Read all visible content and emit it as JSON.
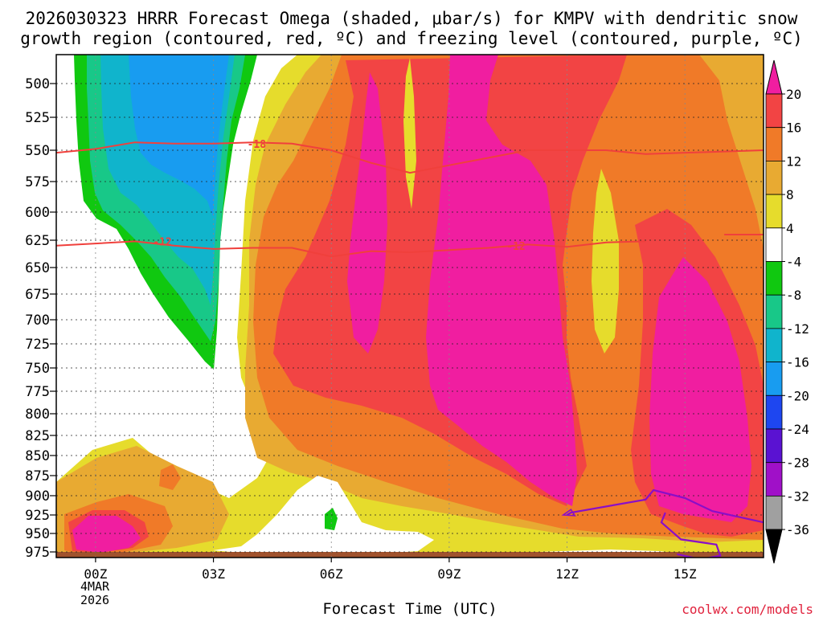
{
  "chart_data": {
    "type": "heatmap",
    "title_line1": "2026030323 HRRR Forecast Omega (shaded, μbar/s) for KMPV with dendritic snow",
    "title_line2": "growth region (contoured, red, ºC) and freezing level (contoured, purple, ºC)",
    "xlabel": "Forecast Time (UTC)",
    "watermark": "coolwx.com/models",
    "x_range_hours": [
      -1.0,
      17.0
    ],
    "x_ticks": [
      {
        "hour": 0,
        "label": "00Z"
      },
      {
        "hour": 3,
        "label": "03Z"
      },
      {
        "hour": 6,
        "label": "06Z"
      },
      {
        "hour": 9,
        "label": "09Z"
      },
      {
        "hour": 12,
        "label": "12Z"
      },
      {
        "hour": 15,
        "label": "15Z"
      }
    ],
    "date_label_1": "4MAR",
    "date_label_2": "2026",
    "y_range_mb": [
      985,
      475
    ],
    "y_ticks": [
      500,
      525,
      550,
      575,
      600,
      625,
      650,
      675,
      700,
      725,
      750,
      775,
      800,
      825,
      850,
      875,
      900,
      925,
      950,
      975
    ],
    "colorbar": {
      "labels": [
        "20",
        "16",
        "12",
        "8",
        "4",
        "-4",
        "-8",
        "-12",
        "-16",
        "-20",
        "-24",
        "-28",
        "-32",
        "-36"
      ],
      "colors": [
        "#f24444",
        "#f07a28",
        "#e8aa32",
        "#e6dc2c",
        "#ffffff",
        "#10c810",
        "#18c888",
        "#10b4cc",
        "#189cf0",
        "#1e46f0",
        "#5a12d2",
        "#a010c8",
        "#a0a0a0"
      ],
      "top_color": "#f01ea0",
      "bottom_color": "#000000"
    },
    "contours": {
      "dgz_minus18_label": "-18",
      "dgz_minus12_label_a": "-12",
      "dgz_minus12_label_b": "-12",
      "minus18_line": [
        [
          -1,
          552
        ],
        [
          0,
          549
        ],
        [
          1,
          544
        ],
        [
          2,
          545
        ],
        [
          3,
          545
        ],
        [
          4,
          544
        ],
        [
          5,
          545
        ],
        [
          6,
          550
        ],
        [
          7,
          560
        ],
        [
          8,
          568
        ],
        [
          9,
          562
        ],
        [
          10,
          556
        ],
        [
          11,
          550
        ],
        [
          12,
          550
        ],
        [
          13,
          550
        ],
        [
          14,
          553
        ],
        [
          15,
          552
        ],
        [
          16,
          551
        ],
        [
          17,
          550
        ]
      ],
      "minus12_line": [
        [
          -1,
          630
        ],
        [
          0,
          628
        ],
        [
          1,
          626
        ],
        [
          2,
          630
        ],
        [
          3,
          633
        ],
        [
          4,
          632
        ],
        [
          5,
          632
        ],
        [
          6,
          640
        ],
        [
          7,
          635
        ],
        [
          8,
          636
        ],
        [
          9,
          634
        ],
        [
          10,
          632
        ],
        [
          11,
          629
        ],
        [
          12,
          631
        ],
        [
          13,
          627
        ],
        [
          14,
          626
        ]
      ],
      "minus12_line_b": [
        [
          16,
          620
        ],
        [
          17,
          620
        ]
      ],
      "freezing_line": [
        [
          12,
          925
        ],
        [
          12.1,
          922
        ],
        [
          14,
          905
        ],
        [
          14.2,
          893
        ],
        [
          15,
          903
        ],
        [
          15.7,
          920
        ],
        [
          17,
          935
        ]
      ],
      "freezing_loop": [
        [
          14.5,
          922
        ],
        [
          14.4,
          935
        ],
        [
          14.9,
          958
        ],
        [
          15.8,
          965
        ],
        [
          15.9,
          980
        ],
        [
          15.4,
          985
        ],
        [
          14.8,
          978
        ]
      ],
      "freezing_small": [
        [
          11.9,
          925
        ],
        [
          12.1,
          918
        ],
        [
          12.2,
          926
        ],
        [
          11.9,
          925
        ]
      ]
    }
  }
}
